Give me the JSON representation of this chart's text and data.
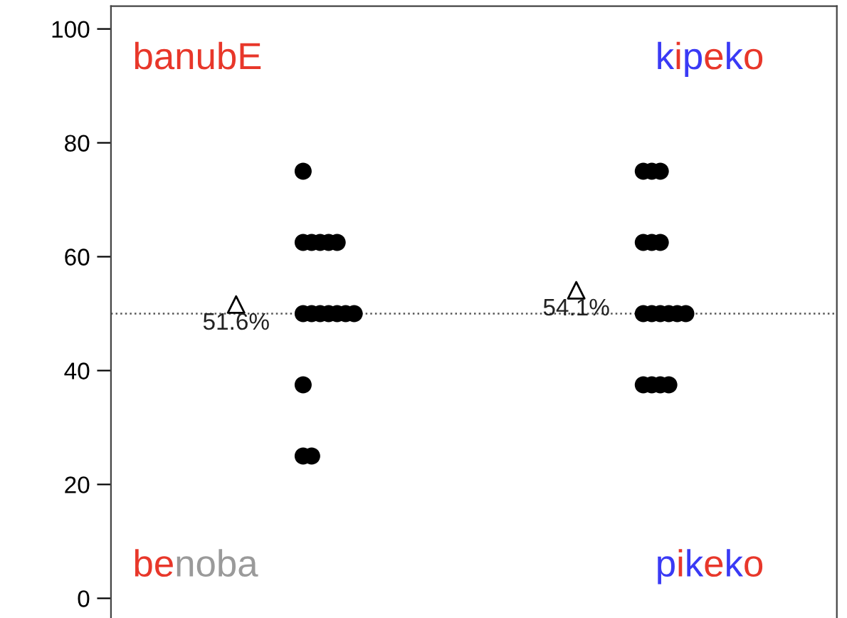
{
  "chart_data": {
    "type": "scatter",
    "categories": [
      null,
      null
    ],
    "ylim": [
      -4,
      104
    ],
    "yticks": [
      0,
      20,
      40,
      60,
      80,
      100
    ],
    "tick_labels": "y",
    "marker": "circle",
    "series": [
      {
        "color": "#000000",
        "values": [
          75,
          75
        ]
      },
      {
        "color": "#000000",
        "values": [
          62.5,
          75
        ]
      },
      {
        "color": "#000000",
        "values": [
          62.5,
          75
        ]
      },
      {
        "color": "#000000",
        "values": [
          62.5,
          62.5
        ]
      },
      {
        "color": "#000000",
        "values": [
          62.5,
          62.5
        ]
      },
      {
        "color": "#000000",
        "values": [
          62.5,
          62.5
        ]
      },
      {
        "color": "#000000",
        "values": [
          50,
          50
        ]
      },
      {
        "color": "#000000",
        "values": [
          50,
          50
        ]
      },
      {
        "color": "#000000",
        "values": [
          50,
          50
        ]
      },
      {
        "color": "#000000",
        "values": [
          50,
          50
        ]
      },
      {
        "color": "#000000",
        "values": [
          50,
          50
        ]
      },
      {
        "color": "#000000",
        "values": [
          50,
          50
        ]
      },
      {
        "color": "#000000",
        "values": [
          50,
          37.5
        ]
      },
      {
        "color": "#000000",
        "values": [
          37.5,
          37.5
        ]
      },
      {
        "color": "#000000",
        "values": [
          25,
          37.5
        ]
      },
      {
        "color": "#000000",
        "values": [
          25,
          37.5
        ]
      },
      {
        "color": "#000000",
        "marker": "triangle",
        "values": [
          51.6,
          54.1
        ],
        "value_labels": [
          "51.6%",
          "54.1%"
        ]
      }
    ],
    "ref_lines": [
      {
        "axis": "y",
        "value": 50,
        "color": "#555555",
        "line_style": "dotted"
      }
    ],
    "annotations": [
      "banubE",
      "kipeko",
      "benoba",
      "pikeko"
    ]
  }
}
